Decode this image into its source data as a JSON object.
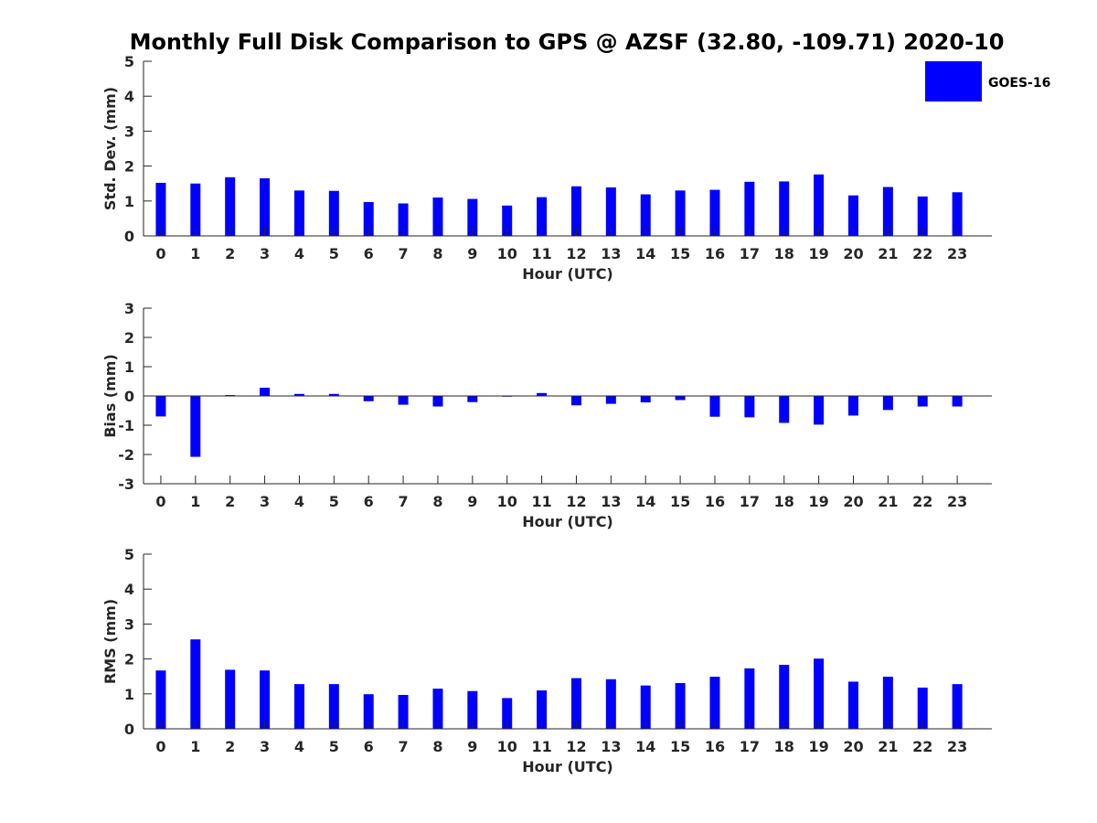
{
  "title": "Monthly Full Disk Comparison to GPS @ AZSF (32.80, -109.71) 2020-10",
  "legend": {
    "label": "GOES-16",
    "color": "#0000ff"
  },
  "chart_data": [
    {
      "type": "bar",
      "series_name": "GOES-16",
      "xlabel": "Hour (UTC)",
      "ylabel": "Std. Dev. (mm)",
      "ylim": [
        0,
        5
      ],
      "yticks": [
        "0",
        "1",
        "2",
        "3",
        "4",
        "5"
      ],
      "categories": [
        "0",
        "1",
        "2",
        "3",
        "4",
        "5",
        "6",
        "7",
        "8",
        "9",
        "10",
        "11",
        "12",
        "13",
        "14",
        "15",
        "16",
        "17",
        "18",
        "19",
        "20",
        "21",
        "22",
        "23"
      ],
      "values": [
        1.52,
        1.5,
        1.68,
        1.65,
        1.3,
        1.29,
        0.97,
        0.93,
        1.1,
        1.06,
        0.87,
        1.11,
        1.42,
        1.39,
        1.19,
        1.3,
        1.32,
        1.55,
        1.56,
        1.76,
        1.16,
        1.4,
        1.13,
        1.25
      ],
      "color": "#0000ff"
    },
    {
      "type": "bar",
      "series_name": "GOES-16",
      "xlabel": "Hour (UTC)",
      "ylabel": "Bias (mm)",
      "ylim": [
        -3,
        3
      ],
      "yticks": [
        "-3",
        "-2",
        "-1",
        "0",
        "1",
        "2",
        "3"
      ],
      "categories": [
        "0",
        "1",
        "2",
        "3",
        "4",
        "5",
        "6",
        "7",
        "8",
        "9",
        "10",
        "11",
        "12",
        "13",
        "14",
        "15",
        "16",
        "17",
        "18",
        "19",
        "20",
        "21",
        "22",
        "23"
      ],
      "values": [
        -0.7,
        -2.08,
        0.03,
        0.28,
        0.07,
        0.07,
        -0.18,
        -0.3,
        -0.36,
        -0.21,
        -0.02,
        0.1,
        -0.32,
        -0.27,
        -0.22,
        -0.14,
        -0.71,
        -0.73,
        -0.92,
        -0.98,
        -0.67,
        -0.48,
        -0.36,
        -0.36
      ],
      "color": "#0000ff"
    },
    {
      "type": "bar",
      "series_name": "GOES-16",
      "xlabel": "Hour (UTC)",
      "ylabel": "RMS (mm)",
      "ylim": [
        0,
        5
      ],
      "yticks": [
        "0",
        "1",
        "2",
        "3",
        "4",
        "5"
      ],
      "categories": [
        "0",
        "1",
        "2",
        "3",
        "4",
        "5",
        "6",
        "7",
        "8",
        "9",
        "10",
        "11",
        "12",
        "13",
        "14",
        "15",
        "16",
        "17",
        "18",
        "19",
        "20",
        "21",
        "22",
        "23"
      ],
      "values": [
        1.67,
        2.56,
        1.69,
        1.67,
        1.28,
        1.28,
        0.99,
        0.97,
        1.15,
        1.08,
        0.88,
        1.1,
        1.45,
        1.42,
        1.24,
        1.31,
        1.49,
        1.73,
        1.83,
        2.01,
        1.35,
        1.49,
        1.18,
        1.28
      ],
      "color": "#0000ff"
    }
  ]
}
